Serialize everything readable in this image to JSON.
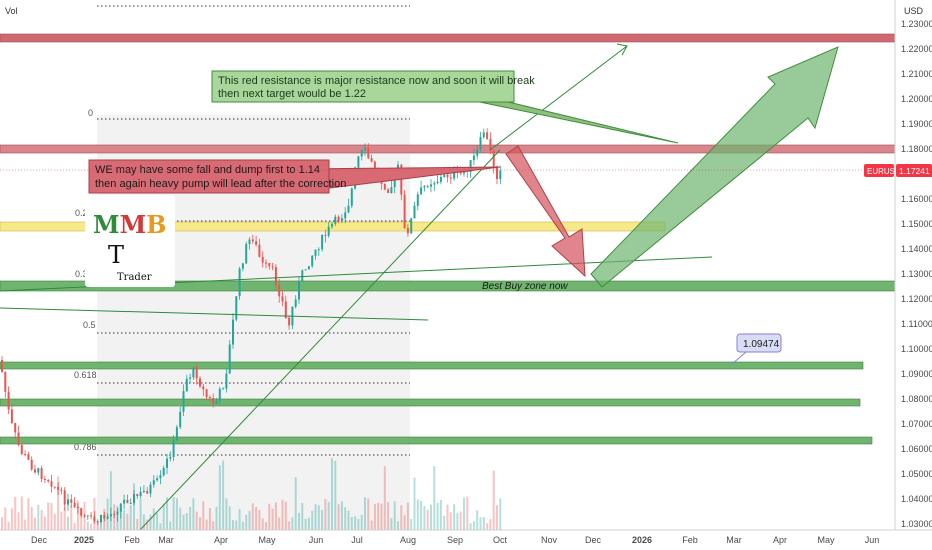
{
  "header": {
    "volume_label": "Vol",
    "currency": "USD"
  },
  "price_axis": {
    "ticks": [
      "1.23000",
      "1.22000",
      "1.21000",
      "1.20000",
      "1.19000",
      "1.18000",
      "1.17000",
      "1.16000",
      "1.15000",
      "1.14000",
      "1.13000",
      "1.12000",
      "1.11000",
      "1.10000",
      "1.09000",
      "1.08000",
      "1.07000",
      "1.06000",
      "1.05000",
      "1.04000",
      "1.03000"
    ],
    "symbol_badge": "EURUSD",
    "last_price": "1.17241",
    "badge_color": "#f23645"
  },
  "time_axis": {
    "labels": [
      "Dec",
      "2025",
      "Feb",
      "Mar",
      "Apr",
      "May",
      "Jun",
      "Jul",
      "Aug",
      "Sep",
      "Oct",
      "Nov",
      "Dec",
      "2026",
      "Feb",
      "Mar",
      "Apr",
      "May",
      "Jun"
    ]
  },
  "fib_levels": [
    "0",
    "0.2",
    "0.3",
    "0.5",
    "0.618",
    "0.786"
  ],
  "annotations": {
    "resistance_note_line1": "This red resistance is major resistance now and soon it will break",
    "resistance_note_line2": "then next target would be 1.22",
    "correction_note_line1": "WE may have some fall and dump first to 1.14",
    "correction_note_line2": "then again heavy pump will lead after the correction",
    "buy_zone": "Best Buy zone now",
    "price_label": "1.09474"
  },
  "logo": {
    "letters": "MMB",
    "caption": "Trader"
  },
  "colors": {
    "resistance": "#d06a72",
    "support": "#5faa5f",
    "yellow_zone": "#f7e98a",
    "up_candle": "#26a69a",
    "down_candle": "#ef5350"
  }
}
